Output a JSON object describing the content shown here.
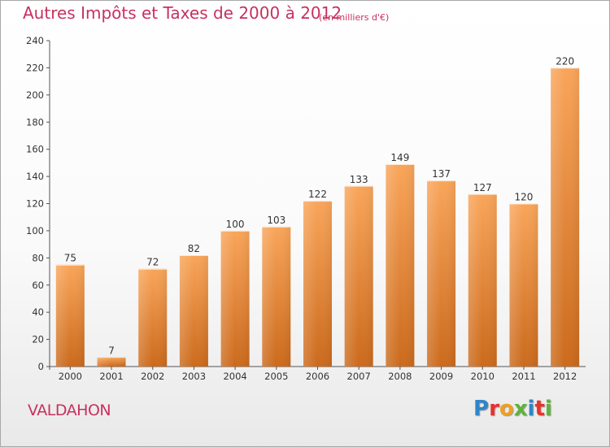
{
  "chart_data": {
    "type": "bar",
    "title": "Autres Impôts et Taxes de 2000 à 2012",
    "subtitle": "(en milliers d'€)",
    "categories": [
      "2000",
      "2001",
      "2002",
      "2003",
      "2004",
      "2005",
      "2006",
      "2007",
      "2008",
      "2009",
      "2010",
      "2011",
      "2012"
    ],
    "values": [
      75,
      7,
      72,
      82,
      100,
      103,
      122,
      133,
      149,
      137,
      127,
      120,
      220
    ],
    "ylim": [
      0,
      240
    ],
    "yticks": [
      0,
      20,
      40,
      60,
      80,
      100,
      120,
      140,
      160,
      180,
      200,
      220,
      240
    ],
    "xlabel": "",
    "ylabel": "",
    "grid": false,
    "bar_color_top": "#f9a55a",
    "bar_color_bottom": "#cb6a1c"
  },
  "location_label": "VALDAHON",
  "logo": {
    "letters": [
      "P",
      "r",
      "o",
      "x",
      "i",
      "t",
      "i"
    ],
    "colors": [
      "#2e86c8",
      "#e8322c",
      "#f0a020",
      "#5db43a",
      "#2e86c8",
      "#e8322c",
      "#5db43a"
    ]
  }
}
